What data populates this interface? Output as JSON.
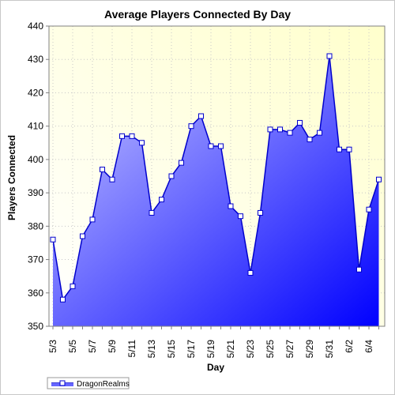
{
  "chart_data": {
    "type": "area",
    "title": "Average Players Connected By Day",
    "xlabel": "Day",
    "ylabel": "Players Connected",
    "ylim": [
      350,
      440
    ],
    "y_ticks": [
      350,
      360,
      370,
      380,
      390,
      400,
      410,
      420,
      430,
      440
    ],
    "x": [
      "5/3",
      "5/4",
      "5/5",
      "5/6",
      "5/7",
      "5/8",
      "5/9",
      "5/10",
      "5/11",
      "5/12",
      "5/13",
      "5/14",
      "5/15",
      "5/16",
      "5/17",
      "5/18",
      "5/19",
      "5/20",
      "5/21",
      "5/22",
      "5/23",
      "5/24",
      "5/25",
      "5/26",
      "5/27",
      "5/28",
      "5/29",
      "5/30",
      "5/31",
      "6/1",
      "6/2",
      "6/3",
      "6/4",
      "6/5"
    ],
    "x_tick_labels": [
      "5/3",
      "5/5",
      "5/7",
      "5/9",
      "5/11",
      "5/13",
      "5/15",
      "5/17",
      "5/19",
      "5/21",
      "5/23",
      "5/25",
      "5/27",
      "5/29",
      "5/31",
      "6/2",
      "6/4"
    ],
    "series": [
      {
        "name": "DragonRealms",
        "color": "#0000ff",
        "values": [
          376,
          358,
          362,
          377,
          382,
          397,
          394,
          407,
          407,
          405,
          384,
          388,
          395,
          399,
          410,
          413,
          404,
          404,
          386,
          383,
          366,
          384,
          409,
          409,
          408,
          411,
          406,
          408,
          431,
          403,
          403,
          367,
          385,
          394
        ]
      }
    ],
    "grid": true,
    "legend": "bottom-left",
    "background_gradient": [
      "#ffffd2",
      "#ffffff"
    ]
  }
}
